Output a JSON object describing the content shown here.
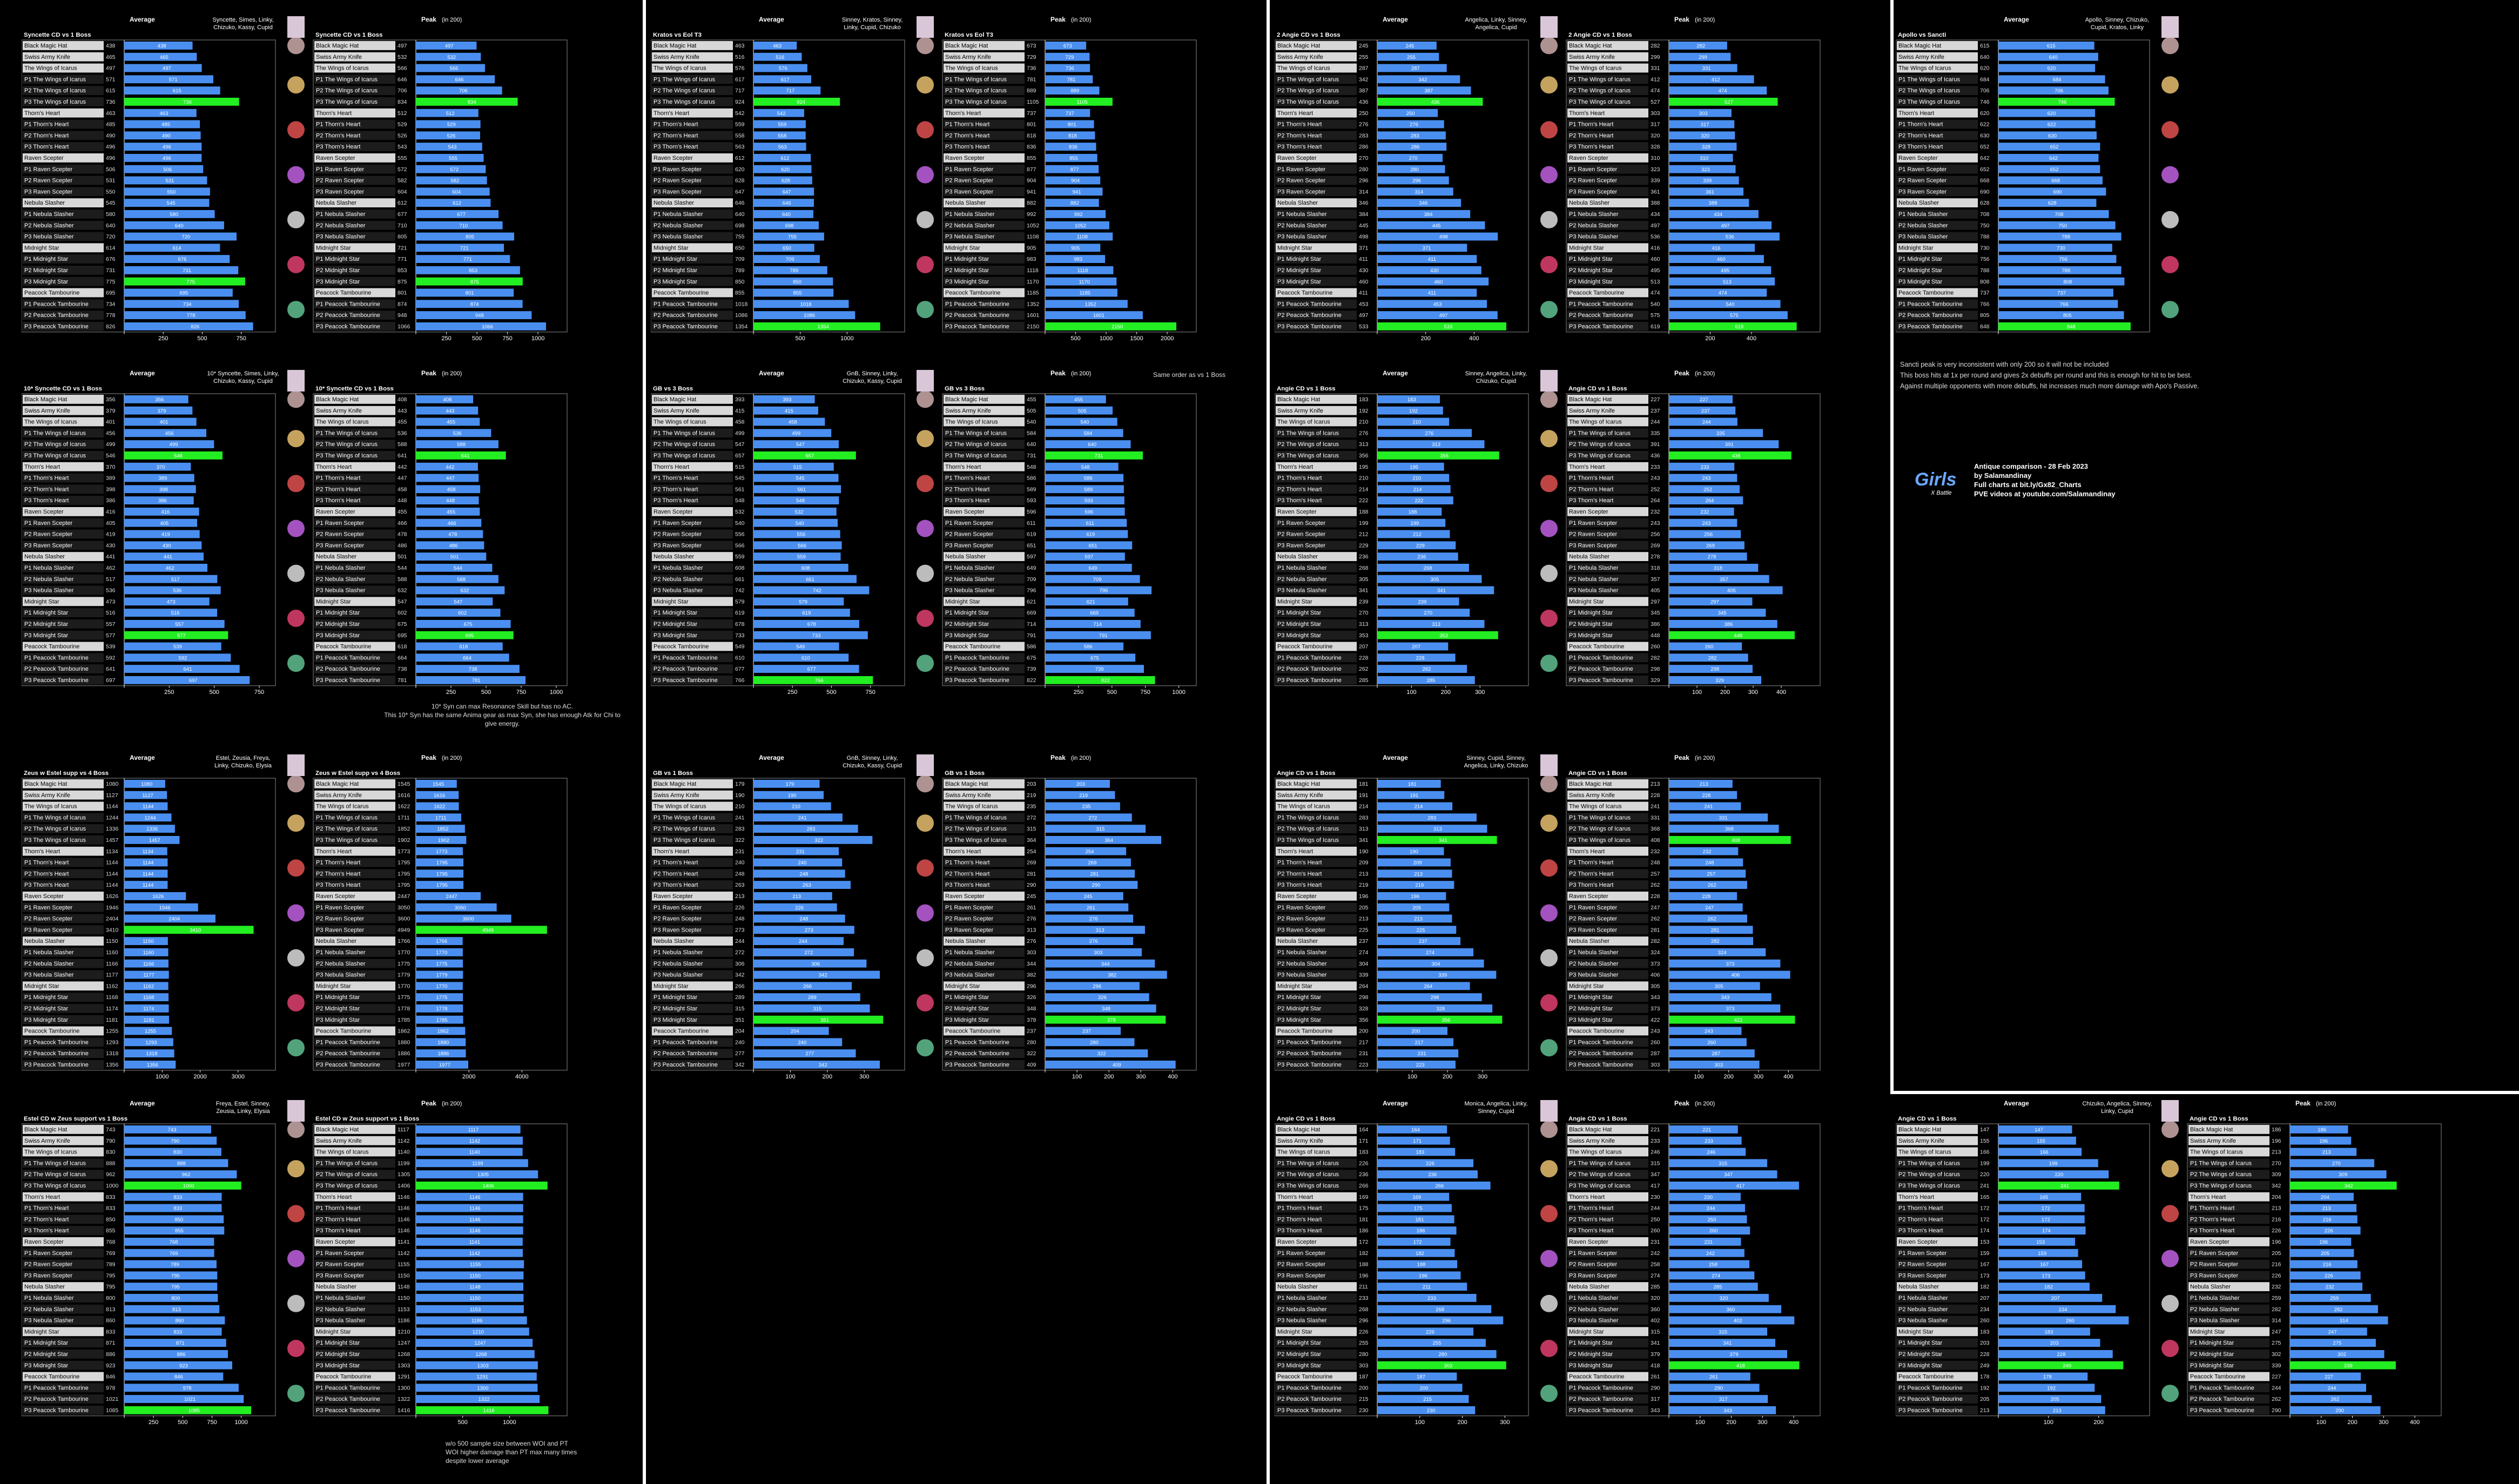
{
  "common": {
    "rows": [
      "Black Magic Hat",
      "Swiss Army Knife",
      "The Wings of Icarus",
      "P1 The Wings of Icarus",
      "P2 The Wings of Icarus",
      "P3 The Wings of Icarus",
      "Thorn's Heart",
      "P1 Thorn's Heart",
      "P2 Thorn's Heart",
      "P3 Thorn's Heart",
      "Raven Scepter",
      "P1 Raven Scepter",
      "P2 Raven Scepter",
      "P3 Raven Scepter",
      "Nebula Slasher",
      "P1 Nebula Slasher",
      "P2 Nebula Slasher",
      "P3 Nebula Slasher",
      "Midnight Star",
      "P1 Midnight Star",
      "P2 Midnight Star",
      "P3 Midnight Star",
      "Peacock Tambourine",
      "P1 Peacock Tambourine",
      "P2 Peacock Tambourine",
      "P3 Peacock Tambourine"
    ],
    "avg_label": "Average",
    "peak_label": "Peak",
    "peak_sub": "(in 200)",
    "colors": {
      "bar": "#4a8ff0",
      "best": "#22ee22",
      "bg": "#000000",
      "rowdark": "#1c1c1c",
      "rowlight": "#d8d8d8"
    }
  },
  "notes": {
    "syn10": "10* Syn can max Resonance Skill but has no AC.",
    "syn10b": "This 10* Syn has the same Anima gear as max Syn, she has enough Atk for Chi to give energy.",
    "gb_same": "Same order as vs 1 Boss",
    "estel": [
      "w/o 500 sample size between WOI and PT",
      "WOI higher damage than PT max many times",
      "despite lower average"
    ]
  },
  "info": {
    "lines": [
      "Sancti peak is very inconsistent with only 200 so it will not be included",
      "This boss hits at 1x per round and gives 2x debuffs per round and this is enough for hit to be best.",
      "Against multiple opponents with more debuffs, hit increases much more damage with Apo's Passive."
    ]
  },
  "credit": {
    "logo": "Girls",
    "logo_sub": "X Battle",
    "lines": [
      "Antique comparison - 28 Feb 2023",
      "by Salamandinay",
      "Full charts at bit.ly/Gx82_Charts",
      "PVE videos at youtube.com/Salamandinay"
    ]
  },
  "chart_data": [
    {
      "type": "bar",
      "title": "Syncette CD vs 1 Boss",
      "team": "Syncette, Simes, Linky, Chizuko, Kassy, Cupid",
      "avg": [
        438,
        465,
        497,
        571,
        615,
        736,
        463,
        485,
        490,
        496,
        496,
        506,
        531,
        550,
        545,
        580,
        640,
        720,
        614,
        676,
        731,
        775,
        695,
        734,
        778,
        826
      ],
      "peak": [
        497,
        532,
        566,
        646,
        706,
        834,
        512,
        529,
        526,
        543,
        555,
        572,
        582,
        604,
        612,
        677,
        710,
        805,
        721,
        771,
        853,
        875,
        801,
        874,
        948,
        1066
      ],
      "best": [
        5,
        21
      ],
      "xlim": [
        0,
        900
      ],
      "ticks": [
        250,
        500,
        750
      ],
      "plim": [
        0,
        1150
      ],
      "pticks": [
        250,
        500,
        750,
        1000
      ]
    },
    {
      "type": "bar",
      "title": "Kratos vs Eol T3",
      "team": "Sinney, Kratos, Sinney, Linky, Cupid, Chizuko",
      "avg": [
        463,
        516,
        576,
        617,
        717,
        924,
        542,
        559,
        558,
        563,
        612,
        620,
        628,
        647,
        646,
        640,
        698,
        755,
        650,
        709,
        789,
        850,
        855,
        1018,
        1086,
        1354
      ],
      "peak": [
        673,
        729,
        736,
        781,
        889,
        1105,
        737,
        801,
        818,
        836,
        855,
        877,
        904,
        941,
        882,
        992,
        1052,
        1108,
        905,
        983,
        1118,
        1170,
        1185,
        1352,
        1601,
        2150
      ],
      "best": [
        5,
        25
      ],
      "xlim": [
        0,
        1500
      ],
      "ticks": [
        500,
        1000
      ],
      "plim": [
        0,
        2300
      ],
      "pticks": [
        500,
        1000,
        1500,
        2000
      ]
    },
    {
      "type": "bar",
      "title": "2 Angie CD vs 1 Boss",
      "team": "Angelica, Linky, Sinney, Angelica, Cupid",
      "avg": [
        245,
        255,
        287,
        342,
        387,
        436,
        250,
        276,
        283,
        286,
        270,
        280,
        296,
        314,
        346,
        384,
        445,
        498,
        371,
        411,
        430,
        460,
        411,
        453,
        497,
        533
      ],
      "peak": [
        282,
        299,
        331,
        412,
        474,
        527,
        303,
        317,
        320,
        328,
        310,
        323,
        339,
        361,
        388,
        434,
        497,
        536,
        416,
        460,
        495,
        513,
        474,
        540,
        575,
        619
      ],
      "best": [
        5,
        25
      ],
      "xlim": [
        0,
        580
      ],
      "ticks": [
        200,
        400
      ],
      "plim": [
        0,
        680
      ],
      "pticks": [
        200,
        400
      ]
    },
    {
      "type": "bar",
      "title": "Apollo vs Sancti",
      "team": "Apollo, Sinney, Chizuko, Cupid, Kratos, Linky",
      "avg": [
        615,
        640,
        620,
        684,
        706,
        746,
        620,
        622,
        630,
        652,
        642,
        652,
        668,
        690,
        628,
        708,
        750,
        788,
        730,
        756,
        788,
        808,
        737,
        766,
        805,
        848
      ],
      "peak": [],
      "best": [
        5,
        25
      ],
      "xlim": [
        0,
        900
      ],
      "ticks": [],
      "plim": [
        0,
        1
      ],
      "pticks": []
    },
    {
      "type": "bar",
      "title": "10* Syncette CD vs 1 Boss",
      "team": "10* Syncette, Simes, Linky, Chizuko, Kassy, Cupid",
      "avg": [
        356,
        379,
        401,
        456,
        499,
        546,
        370,
        389,
        398,
        386,
        416,
        405,
        419,
        430,
        441,
        462,
        517,
        536,
        473,
        516,
        557,
        577,
        539,
        592,
        641,
        697
      ],
      "peak": [
        408,
        443,
        455,
        536,
        588,
        641,
        442,
        447,
        458,
        448,
        455,
        466,
        478,
        486,
        501,
        544,
        588,
        632,
        547,
        602,
        675,
        695,
        618,
        664,
        738,
        781
      ],
      "best": [
        5,
        21
      ],
      "xlim": [
        0,
        780
      ],
      "ticks": [
        250,
        500,
        750
      ],
      "plim": [
        0,
        1000
      ],
      "pticks": [
        250,
        500,
        750,
        1000
      ]
    },
    {
      "type": "bar",
      "title": "GB vs 3 Boss",
      "team": "GnB, Sinney, Linky, Chizuko, Kassy, Cupid",
      "avg": [
        393,
        415,
        458,
        499,
        547,
        657,
        515,
        545,
        561,
        548,
        532,
        540,
        556,
        566,
        559,
        608,
        661,
        742,
        579,
        619,
        678,
        733,
        549,
        610,
        677,
        766
      ],
      "peak": [
        455,
        505,
        540,
        584,
        640,
        731,
        548,
        586,
        589,
        593,
        596,
        611,
        619,
        651,
        597,
        649,
        709,
        796,
        621,
        669,
        714,
        791,
        586,
        675,
        739,
        822
      ],
      "best": [
        5,
        25
      ],
      "xlim": [
        0,
        900
      ],
      "ticks": [
        250,
        500,
        750
      ],
      "plim": [
        0,
        1050
      ],
      "pticks": [
        250,
        500,
        750,
        1000
      ]
    },
    {
      "type": "bar",
      "title": "Angie CD vs 1 Boss",
      "team": "Sinney, Angelica, Linky, Chizuko, Cupid",
      "avg": [
        183,
        192,
        210,
        276,
        313,
        356,
        195,
        210,
        214,
        222,
        188,
        199,
        212,
        229,
        236,
        268,
        305,
        341,
        239,
        270,
        313,
        353,
        207,
        228,
        262,
        285
      ],
      "peak": [
        227,
        237,
        244,
        335,
        391,
        436,
        233,
        243,
        252,
        264,
        232,
        243,
        256,
        269,
        278,
        318,
        357,
        405,
        297,
        345,
        386,
        448,
        260,
        282,
        298,
        329
      ],
      "best": [
        5,
        21
      ],
      "xlim": [
        0,
        410
      ],
      "ticks": [
        100,
        200,
        300
      ],
      "plim": [
        0,
        500
      ],
      "pticks": [
        100,
        200,
        300,
        400
      ]
    },
    {
      "type": "bar",
      "title": "Zeus w Estel supp vs 4 Boss",
      "team": "Estel, Zeusia, Freya, Linky, Chizuko, Elysia",
      "avg": [
        1080,
        1127,
        1144,
        1244,
        1336,
        1457,
        1134,
        1144,
        1144,
        1144,
        1626,
        1946,
        2404,
        3410,
        1150,
        1160,
        1166,
        1177,
        1162,
        1168,
        1174,
        1181,
        1255,
        1293,
        1318,
        1356
      ],
      "peak": [
        1545,
        1616,
        1622,
        1711,
        1852,
        1902,
        1773,
        1795,
        1795,
        1795,
        2447,
        3050,
        3600,
        4949,
        1766,
        1770,
        1775,
        1779,
        1770,
        1775,
        1778,
        1785,
        1862,
        1880,
        1886,
        1977
      ],
      "best": [
        13,
        13
      ],
      "xlim": [
        0,
        3700
      ],
      "ticks": [
        1000,
        2000,
        3000
      ],
      "plim": [
        0,
        5300
      ],
      "pticks": [
        2000,
        4000
      ]
    },
    {
      "type": "bar",
      "title": "GB vs 1 Boss",
      "team": "GnB, Sinney, Linky, Chizuko, Kassy, Cupid",
      "avg": [
        179,
        190,
        210,
        241,
        283,
        322,
        231,
        240,
        248,
        263,
        213,
        226,
        248,
        273,
        244,
        272,
        306,
        342,
        266,
        289,
        315,
        351,
        204,
        240,
        277,
        342
      ],
      "peak": [
        203,
        219,
        235,
        272,
        315,
        364,
        254,
        269,
        281,
        290,
        245,
        261,
        276,
        313,
        276,
        303,
        344,
        382,
        296,
        326,
        348,
        378,
        237,
        280,
        322,
        409
      ],
      "best": [
        21,
        21
      ],
      "xlim": [
        0,
        380
      ],
      "ticks": [
        100,
        200,
        300
      ],
      "plim": [
        0,
        440
      ],
      "pticks": [
        100,
        200,
        300,
        400
      ]
    },
    {
      "type": "bar",
      "title": "Angie CD vs 1 Boss",
      "team": "Sinney, Cupid, Sinney, Angelica, Linky, Chizuko",
      "avg": [
        181,
        191,
        214,
        283,
        313,
        341,
        190,
        209,
        213,
        219,
        196,
        205,
        213,
        225,
        237,
        274,
        304,
        339,
        264,
        298,
        328,
        356,
        200,
        217,
        231,
        223
      ],
      "peak": [
        213,
        228,
        241,
        331,
        368,
        408,
        232,
        248,
        257,
        262,
        228,
        247,
        262,
        281,
        282,
        324,
        373,
        406,
        305,
        343,
        373,
        422,
        243,
        260,
        287,
        303
      ],
      "best": [
        5,
        21
      ],
      "xlim": [
        0,
        400
      ],
      "ticks": [
        100,
        200,
        300
      ],
      "plim": [
        0,
        470
      ],
      "pticks": [
        100,
        200,
        300,
        400
      ]
    },
    {
      "type": "bar",
      "title": "Estel CD w Zeus support vs 1 Boss",
      "team": "Freya, Estel, Sinney, Zeusia, Linky, Elysia",
      "avg": [
        743,
        790,
        830,
        888,
        962,
        1000,
        833,
        833,
        850,
        855,
        768,
        769,
        789,
        795,
        795,
        800,
        813,
        860,
        833,
        871,
        886,
        923,
        846,
        978,
        1021,
        1085
      ],
      "peak": [
        1117,
        1142,
        1140,
        1199,
        1305,
        1406,
        1146,
        1146,
        1146,
        1146,
        1141,
        1142,
        1155,
        1150,
        1148,
        1150,
        1153,
        1186,
        1210,
        1247,
        1268,
        1303,
        1291,
        1300,
        1322,
        1416
      ],
      "best": [
        5,
        25
      ],
      "xlim": [
        0,
        1200
      ],
      "ticks": [
        250,
        500,
        750,
        1000
      ],
      "plim": [
        0,
        1500
      ],
      "pticks": [
        500,
        1000
      ]
    },
    {
      "type": "bar",
      "title": "Angie CD vs 1 Boss",
      "team": "Monica, Angelica, Linky, Sinney, Cupid",
      "avg": [
        164,
        171,
        183,
        226,
        236,
        266,
        169,
        175,
        181,
        186,
        172,
        182,
        188,
        196,
        211,
        233,
        268,
        296,
        226,
        255,
        280,
        303,
        187,
        200,
        215,
        230
      ],
      "peak": [
        221,
        233,
        246,
        315,
        347,
        417,
        230,
        244,
        250,
        260,
        231,
        242,
        258,
        274,
        285,
        320,
        360,
        402,
        315,
        341,
        379,
        418,
        261,
        290,
        317,
        343
      ],
      "best": [
        21,
        21
      ],
      "xlim": [
        0,
        330
      ],
      "ticks": [
        100,
        200,
        300
      ],
      "plim": [
        0,
        450
      ],
      "pticks": [
        100,
        200,
        300,
        400
      ]
    },
    {
      "type": "bar",
      "title": "Angie CD vs 1 Boss",
      "team": "Chizuko, Angelica, Sinney, Linky, Cupid",
      "avg": [
        147,
        155,
        166,
        199,
        220,
        241,
        165,
        172,
        172,
        174,
        153,
        159,
        167,
        173,
        182,
        207,
        234,
        260,
        183,
        203,
        228,
        249,
        178,
        192,
        205,
        213
      ],
      "peak": [
        186,
        196,
        213,
        270,
        309,
        342,
        204,
        213,
        216,
        226,
        196,
        205,
        216,
        226,
        232,
        259,
        282,
        314,
        247,
        275,
        302,
        339,
        227,
        244,
        262,
        290
      ],
      "best": [
        5,
        21
      ],
      "xlim": [
        0,
        280
      ],
      "ticks": [
        100,
        200
      ],
      "plim": [
        0,
        450
      ],
      "pticks": [
        100,
        200,
        300,
        400
      ]
    }
  ]
}
